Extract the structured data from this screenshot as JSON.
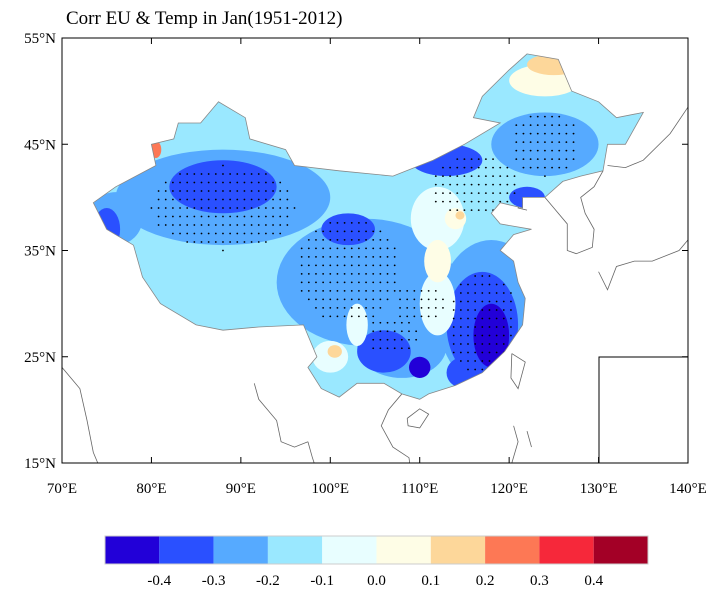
{
  "title": "Corr EU & Temp in Jan(1951-2012)",
  "map": {
    "lon_range": [
      70,
      140
    ],
    "lat_range": [
      15,
      55
    ],
    "lon_ticks": [
      "70°E",
      "80°E",
      "90°E",
      "100°E",
      "110°E",
      "120°E",
      "130°E",
      "140°E"
    ],
    "lat_ticks": [
      "55°N",
      "45°N",
      "35°N",
      "25°N",
      "15°N"
    ],
    "stippling": "significant correlation"
  },
  "colorbar": {
    "labels": [
      "-0.4",
      "-0.3",
      "-0.2",
      "-0.1",
      "0.0",
      "0.1",
      "0.2",
      "0.3",
      "0.4"
    ],
    "colors": [
      "#2200d8",
      "#2a50ff",
      "#56aaff",
      "#9ae8ff",
      "#e8feff",
      "#fefde6",
      "#fdd79a",
      "#fd7855",
      "#f6283a",
      "#a30026"
    ]
  }
}
